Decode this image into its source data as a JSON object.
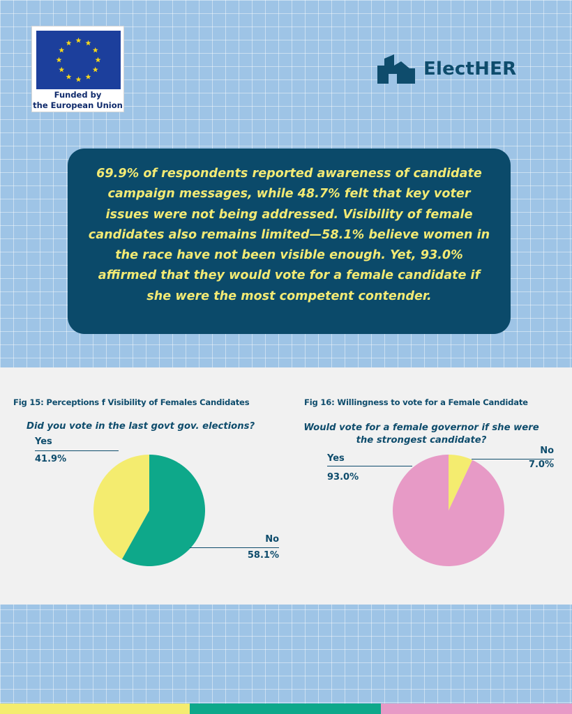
{
  "logo": {
    "eu_line1": "Funded by",
    "eu_line2": "the European Union",
    "brand_name": "ElectHER"
  },
  "summary": {
    "text": "69.9% of respondents reported awareness of candidate campaign messages, while 48.7% felt that key voter issues were not being addressed. Visibility of female candidates also remains limited—58.1% believe women in the race have not been visible enough. Yet, 93.0% affirmed that they would vote for a female candidate if she were the most competent contender."
  },
  "colors": {
    "background": "#9ec4e6",
    "summary_box": "#0b4a6a",
    "summary_text": "#f3ea74",
    "label_text": "#0e4c6c",
    "yellow": "#f4ec6f",
    "green": "#0ea88a",
    "pink": "#e79ac6",
    "stripe_yellow": "#f4ec6f",
    "stripe_green": "#0ea88a",
    "stripe_pink": "#e79ac6"
  },
  "chart_data": [
    {
      "type": "pie",
      "title": "Fig 15: Perceptions f Visibility of Females Candidates",
      "question": "Did you vote in the last govt gov. elections?",
      "categories": [
        "Yes",
        "No"
      ],
      "values": [
        41.9,
        58.1
      ],
      "value_labels": [
        "41.9%",
        "58.1%"
      ],
      "colors": [
        "#f4ec6f",
        "#0ea88a"
      ]
    },
    {
      "type": "pie",
      "title": "Fig 16: Willingness to vote for a Female Candidate",
      "question_line1": "Would vote for a  female governor if she were",
      "question_line2": "the strongest candidate?",
      "categories": [
        "Yes",
        "No"
      ],
      "values": [
        93.0,
        7.0
      ],
      "value_labels": [
        "93.0%",
        "7.0%"
      ],
      "colors": [
        "#e79ac6",
        "#f4ec6f"
      ]
    }
  ]
}
